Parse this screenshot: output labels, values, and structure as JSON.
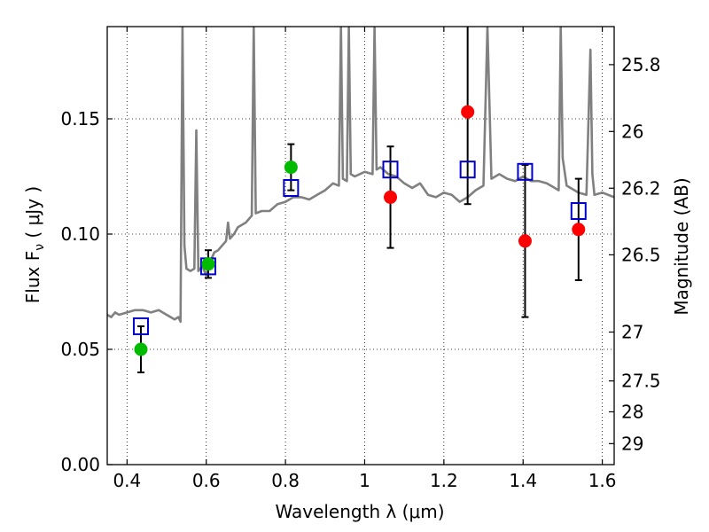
{
  "chart_data": {
    "type": "scatter",
    "xlabel": "Wavelength  λ (μm)",
    "ylabel": "Flux  F",
    "ylabel_sub": "ν",
    "ylabel_unit": "  ( μJy )",
    "y2label": "Magnitude (AB)",
    "xlim": [
      0.35,
      1.63
    ],
    "ylim": [
      0.0,
      0.19
    ],
    "grid": true,
    "x_ticks": [
      0.4,
      0.6,
      0.8,
      1.0,
      1.2,
      1.4,
      1.6
    ],
    "x_tick_labels": [
      "0.4",
      "0.6",
      "0.8",
      "1",
      "1.2",
      "1.4",
      "1.6"
    ],
    "y_ticks": [
      0.0,
      0.05,
      0.1,
      0.15
    ],
    "y_tick_labels": [
      "0.00",
      "0.05",
      "0.10",
      "0.15"
    ],
    "y2_ticks": [
      {
        "label": "25.8",
        "flux": 0.1735
      },
      {
        "label": "26",
        "flux": 0.1445
      },
      {
        "label": "26.2",
        "flux": 0.1199
      },
      {
        "label": "26.5",
        "flux": 0.091
      },
      {
        "label": "27",
        "flux": 0.0575
      },
      {
        "label": "27.5",
        "flux": 0.0363
      },
      {
        "label": "28",
        "flux": 0.0229
      },
      {
        "label": "29",
        "flux": 0.0091
      }
    ],
    "spectrum": {
      "color": "#808080",
      "x": [
        0.35,
        0.36,
        0.37,
        0.38,
        0.4,
        0.42,
        0.44,
        0.46,
        0.48,
        0.5,
        0.52,
        0.53,
        0.535,
        0.54,
        0.545,
        0.55,
        0.56,
        0.57,
        0.575,
        0.58,
        0.59,
        0.6,
        0.61,
        0.62,
        0.63,
        0.64,
        0.65,
        0.655,
        0.66,
        0.67,
        0.68,
        0.7,
        0.715,
        0.72,
        0.725,
        0.74,
        0.76,
        0.78,
        0.8,
        0.82,
        0.84,
        0.86,
        0.88,
        0.9,
        0.92,
        0.935,
        0.94,
        0.945,
        0.955,
        0.96,
        0.965,
        0.975,
        1.0,
        1.02,
        1.025,
        1.03,
        1.04,
        1.06,
        1.08,
        1.1,
        1.12,
        1.14,
        1.16,
        1.18,
        1.2,
        1.22,
        1.24,
        1.26,
        1.28,
        1.3,
        1.31,
        1.32,
        1.34,
        1.36,
        1.38,
        1.4,
        1.42,
        1.44,
        1.46,
        1.48,
        1.49,
        1.495,
        1.5,
        1.51,
        1.52,
        1.54,
        1.56,
        1.57,
        1.575,
        1.58,
        1.6,
        1.63
      ],
      "y": [
        0.065,
        0.064,
        0.066,
        0.065,
        0.066,
        0.067,
        0.067,
        0.066,
        0.067,
        0.065,
        0.063,
        0.064,
        0.062,
        0.19,
        0.095,
        0.085,
        0.084,
        0.085,
        0.145,
        0.084,
        0.086,
        0.082,
        0.088,
        0.092,
        0.093,
        0.095,
        0.097,
        0.105,
        0.098,
        0.1,
        0.103,
        0.105,
        0.108,
        0.19,
        0.109,
        0.11,
        0.11,
        0.113,
        0.114,
        0.116,
        0.116,
        0.115,
        0.117,
        0.119,
        0.122,
        0.121,
        0.19,
        0.124,
        0.123,
        0.19,
        0.126,
        0.125,
        0.127,
        0.126,
        0.19,
        0.128,
        0.129,
        0.126,
        0.125,
        0.122,
        0.12,
        0.122,
        0.117,
        0.116,
        0.118,
        0.117,
        0.114,
        0.116,
        0.119,
        0.121,
        0.19,
        0.124,
        0.126,
        0.124,
        0.123,
        0.125,
        0.123,
        0.123,
        0.122,
        0.12,
        0.119,
        0.19,
        0.133,
        0.121,
        0.12,
        0.118,
        0.117,
        0.18,
        0.126,
        0.117,
        0.118,
        0.116
      ]
    },
    "model_photometry": {
      "name": "",
      "marker": "open-square",
      "color": "#0000cc",
      "x": [
        0.435,
        0.605,
        0.814,
        1.065,
        1.26,
        1.405,
        1.54
      ],
      "y": [
        0.06,
        0.086,
        0.12,
        0.128,
        0.128,
        0.127,
        0.11
      ]
    },
    "observed_detections": {
      "name": "",
      "marker": "filled-circle",
      "color": "#00bb00",
      "x": [
        0.435,
        0.605,
        0.814
      ],
      "y": [
        0.05,
        0.087,
        0.129
      ],
      "yerr": [
        0.01,
        0.006,
        0.01
      ]
    },
    "observed_ir": {
      "name": "",
      "marker": "filled-circle",
      "color": "#ff0000",
      "x": [
        1.065,
        1.26,
        1.405,
        1.54
      ],
      "y": [
        0.116,
        0.153,
        0.097,
        0.102
      ],
      "yerr": [
        0.022,
        0.04,
        0.033,
        0.022
      ]
    }
  }
}
